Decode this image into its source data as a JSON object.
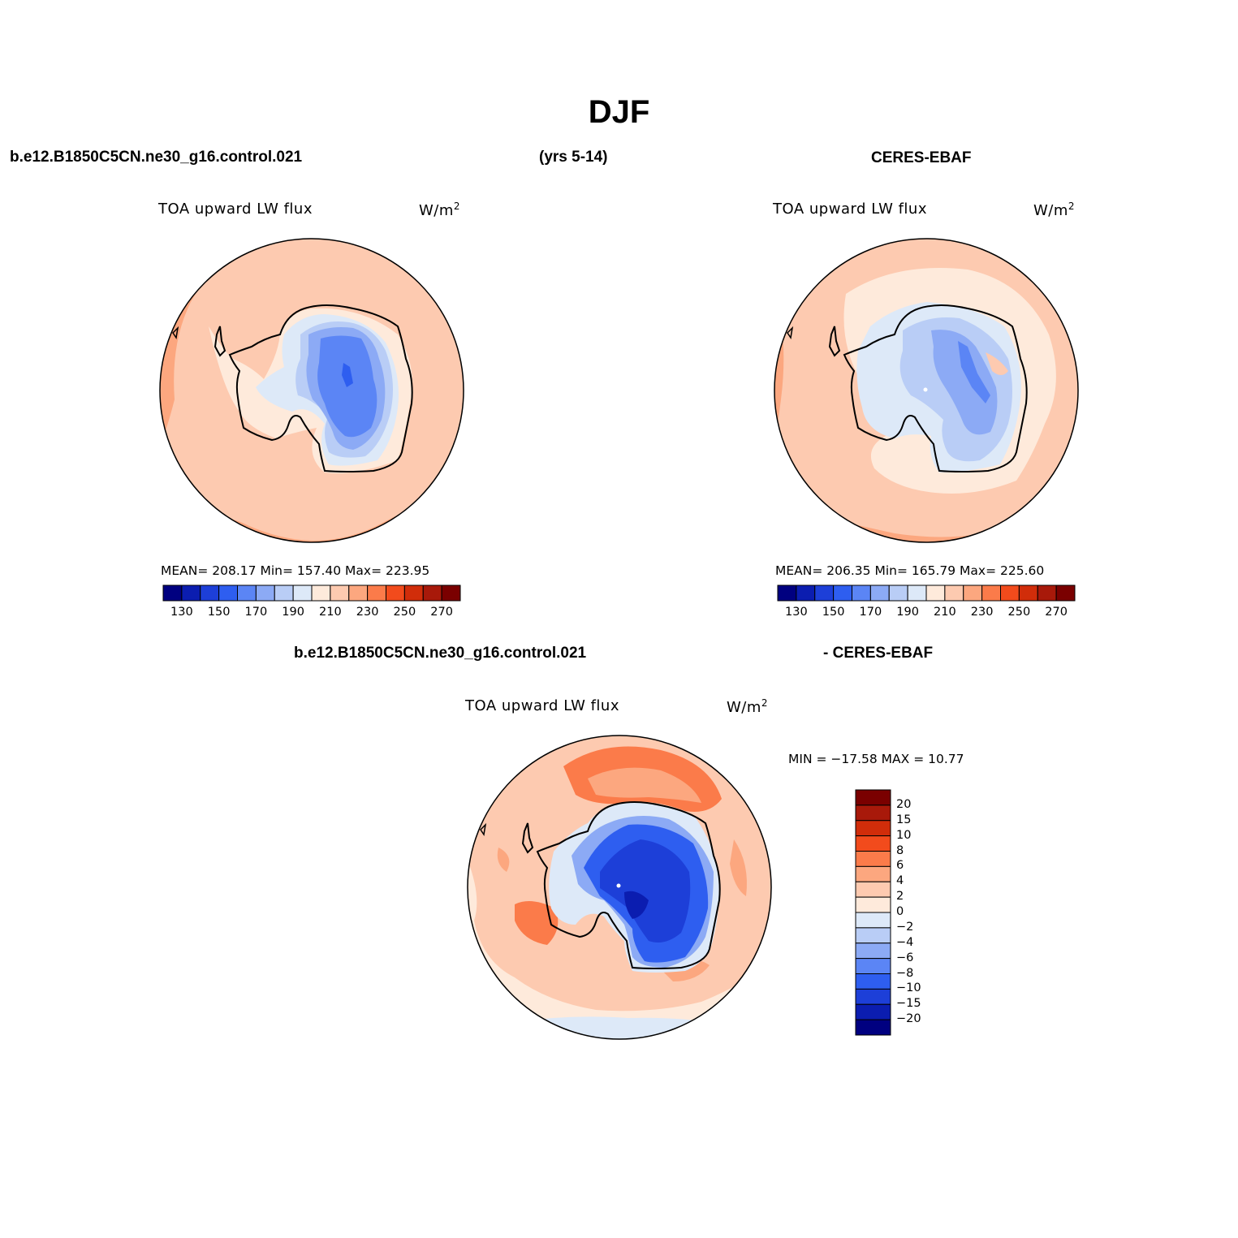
{
  "title": "DJF",
  "header": {
    "model_case": "b.e12.B1850C5CN.ne30_g16.control.021",
    "years": "(yrs 5-14)",
    "obs": "CERES-EBAF"
  },
  "diff_header": {
    "model_case": "b.e12.B1850C5CN.ne30_g16.control.021",
    "minus_obs": "- CERES-EBAF"
  },
  "colors": {
    "abs_scale": [
      "#000080",
      "#0b1db0",
      "#1d3fd8",
      "#2e5ef0",
      "#5b85f5",
      "#8caaf5",
      "#b9cdf6",
      "#dde9f8",
      "#feeadb",
      "#fdcab0",
      "#fca77f",
      "#fb7b4a",
      "#f24b1c",
      "#d12d0a",
      "#a8190a",
      "#7a0000"
    ],
    "diff_scale": [
      "#000080",
      "#0b1db0",
      "#1d3fd8",
      "#2e5ef0",
      "#5b85f5",
      "#8caaf5",
      "#b9cdf6",
      "#dde9f8",
      "#feeadb",
      "#fdcab0",
      "#fca77f",
      "#fb7b4a",
      "#f24b1c",
      "#d12d0a",
      "#a8190a",
      "#7a0000"
    ]
  },
  "panels": [
    {
      "id": "model",
      "variable": "TOA upward LW flux",
      "units_base": "W/m",
      "units_exp": "2",
      "stats_text": "MEAN= 208.17   Min= 157.40   Max= 223.95",
      "mean": 208.17,
      "min": 157.4,
      "max": 223.95,
      "colorbar_labels": [
        "130",
        "150",
        "170",
        "190",
        "210",
        "230",
        "250",
        "270"
      ]
    },
    {
      "id": "obs",
      "variable": "TOA upward LW flux",
      "units_base": "W/m",
      "units_exp": "2",
      "stats_text": "MEAN= 206.35   Min= 165.79   Max= 225.60",
      "mean": 206.35,
      "min": 165.79,
      "max": 225.6,
      "colorbar_labels": [
        "130",
        "150",
        "170",
        "190",
        "210",
        "230",
        "250",
        "270"
      ]
    },
    {
      "id": "diff",
      "variable": "TOA upward LW flux",
      "units_base": "W/m",
      "units_exp": "2",
      "stats_text": "MIN = −17.58 MAX =   10.77",
      "min": -17.58,
      "max": 10.77,
      "colorbar_labels": [
        "20",
        "15",
        "10",
        "8",
        "6",
        "4",
        "2",
        "0",
        "−2",
        "−4",
        "−6",
        "−8",
        "−10",
        "−15",
        "−20"
      ]
    }
  ]
}
